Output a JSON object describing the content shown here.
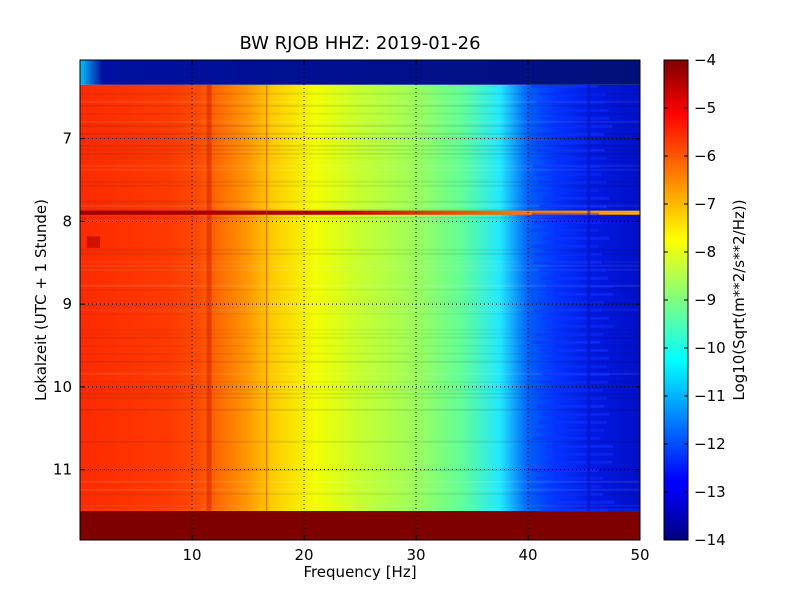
{
  "chart_data": {
    "type": "heatmap",
    "title": "BW RJOB HHZ: 2019-01-26",
    "xlabel": "Frequency [Hz]",
    "ylabel": "Lokalzeit (UTC + 1 Stunde)",
    "xlim": [
      0,
      50
    ],
    "ylim": [
      11.85,
      6.05
    ],
    "y_inverted": true,
    "x_ticks": [
      10,
      20,
      30,
      40,
      50
    ],
    "y_ticks": [
      7,
      8,
      9,
      10,
      11
    ],
    "grid": true,
    "colorbar": {
      "label": "Log10(Sqrt(m**2/s**2/Hz))",
      "colormap": "jet",
      "min": -14,
      "max": -4,
      "ticks": [
        -4,
        -5,
        -6,
        -7,
        -8,
        -9,
        -10,
        -11,
        -12,
        -13,
        -14
      ]
    },
    "profile_frequency_hz": [
      0,
      2,
      5,
      8,
      10,
      12,
      15,
      17,
      20,
      25,
      30,
      35,
      38,
      40,
      42,
      45,
      50
    ],
    "profile_log10_amplitude": [
      -5.3,
      -5.5,
      -5.6,
      -5.8,
      -5.9,
      -6.4,
      -6.7,
      -7.2,
      -7.6,
      -8.4,
      -9.0,
      -9.8,
      -10.2,
      -11.2,
      -11.8,
      -12.3,
      -12.6
    ],
    "bands": [
      {
        "t_start": 6.05,
        "t_end": 6.35,
        "level": "data gap / low values (~ -13.5)"
      },
      {
        "t_start": 6.35,
        "t_end": 11.5,
        "level": "recorded spectrum"
      },
      {
        "t_start": 7.87,
        "t_end": 7.92,
        "level": "transient event (~ -4 to -7)"
      },
      {
        "t_start": 11.5,
        "t_end": 11.85,
        "level": "saturated (~ -4)"
      }
    ]
  }
}
